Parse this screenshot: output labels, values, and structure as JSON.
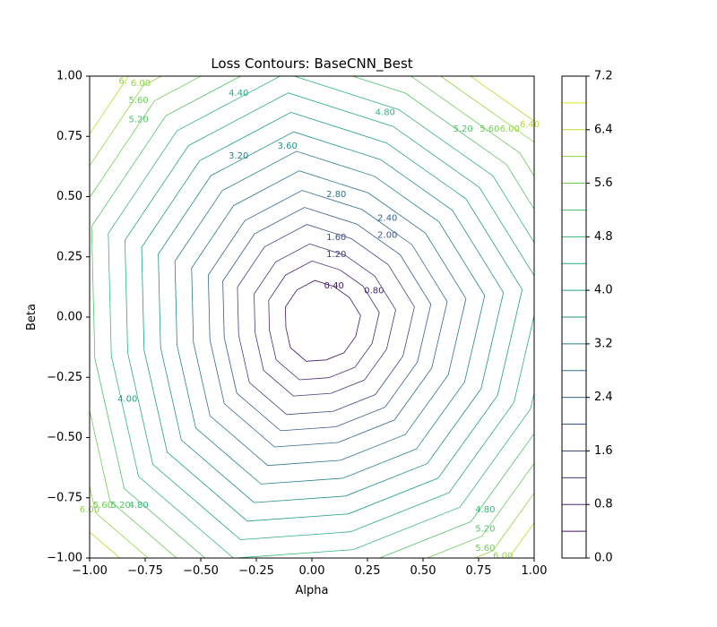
{
  "chart_data": {
    "type": "contour",
    "title": "Loss Contours: BaseCNN_Best",
    "xlabel": "Alpha",
    "ylabel": "Beta",
    "xlim": [
      -1.0,
      1.0
    ],
    "ylim": [
      -1.0,
      1.0
    ],
    "x_ticks": [
      "−1.00",
      "−0.75",
      "−0.50",
      "−0.25",
      "0.00",
      "0.25",
      "0.50",
      "0.75",
      "1.00"
    ],
    "y_ticks": [
      "1.00",
      "0.75",
      "0.50",
      "0.25",
      "0.00",
      "−0.25",
      "−0.50",
      "−0.75",
      "−1.00"
    ],
    "colormap": "viridis",
    "minimum": {
      "alpha": 0.0,
      "beta": 0.0
    },
    "levels": [
      0.4,
      0.8,
      1.2,
      1.6,
      2.0,
      2.4,
      2.8,
      3.2,
      3.6,
      4.0,
      4.4,
      4.8,
      5.2,
      5.6,
      6.0,
      6.4
    ],
    "level_radii": [
      0.17,
      0.25,
      0.32,
      0.4,
      0.47,
      0.54,
      0.62,
      0.7,
      0.78,
      0.86,
      0.94,
      1.02,
      1.1,
      1.18,
      1.26,
      1.34
    ],
    "contour_labels": [
      {
        "text": "0.40",
        "alpha": 0.1,
        "beta": 0.13
      },
      {
        "text": "0.80",
        "alpha": 0.28,
        "beta": 0.11
      },
      {
        "text": "1.20",
        "alpha": 0.11,
        "beta": 0.26
      },
      {
        "text": "1.60",
        "alpha": 0.11,
        "beta": 0.33
      },
      {
        "text": "2.00",
        "alpha": 0.34,
        "beta": 0.34
      },
      {
        "text": "2.40",
        "alpha": 0.34,
        "beta": 0.41
      },
      {
        "text": "2.80",
        "alpha": 0.11,
        "beta": 0.51
      },
      {
        "text": "3.20",
        "alpha": -0.33,
        "beta": 0.67
      },
      {
        "text": "3.60",
        "alpha": -0.11,
        "beta": 0.71
      },
      {
        "text": "4.00",
        "alpha": -0.83,
        "beta": -0.34
      },
      {
        "text": "4.40",
        "alpha": -0.33,
        "beta": 0.93
      },
      {
        "text": "4.80",
        "alpha": 0.33,
        "beta": 0.85
      },
      {
        "text": "5.20",
        "alpha": 0.68,
        "beta": 0.78
      },
      {
        "text": "5.60",
        "alpha": 0.8,
        "beta": 0.78
      },
      {
        "text": "6.00",
        "alpha": 0.89,
        "beta": 0.78
      },
      {
        "text": "6.40",
        "alpha": 0.98,
        "beta": 0.8
      },
      {
        "text": "4.80",
        "alpha": -0.78,
        "beta": -0.78
      },
      {
        "text": "5.20",
        "alpha": -0.86,
        "beta": -0.78
      },
      {
        "text": "5.60",
        "alpha": -0.94,
        "beta": -0.78
      },
      {
        "text": "6.00",
        "alpha": -1.0,
        "beta": -0.8
      },
      {
        "text": "4.80",
        "alpha": 0.78,
        "beta": -0.8
      },
      {
        "text": "5.20",
        "alpha": 0.78,
        "beta": -0.88
      },
      {
        "text": "5.60",
        "alpha": 0.78,
        "beta": -0.96
      },
      {
        "text": "6.00",
        "alpha": 0.86,
        "beta": -0.99
      },
      {
        "text": "5.20",
        "alpha": -0.78,
        "beta": 0.82
      },
      {
        "text": "5.60",
        "alpha": -0.78,
        "beta": 0.9
      },
      {
        "text": "6.00",
        "alpha": -0.77,
        "beta": 0.97
      },
      {
        "text": "6.",
        "alpha": -0.85,
        "beta": 0.98
      }
    ],
    "colorbar": {
      "min": 0.0,
      "max": 7.2,
      "ticks": [
        "0.0",
        "0.8",
        "1.6",
        "2.4",
        "3.2",
        "4.0",
        "4.8",
        "5.6",
        "6.4",
        "7.2"
      ],
      "levels": [
        0.4,
        0.8,
        1.2,
        1.6,
        2.0,
        2.4,
        2.8,
        3.2,
        3.6,
        4.0,
        4.4,
        4.8,
        5.2,
        5.6,
        6.0,
        6.4,
        6.8
      ]
    },
    "grid": false,
    "legend": "none"
  }
}
